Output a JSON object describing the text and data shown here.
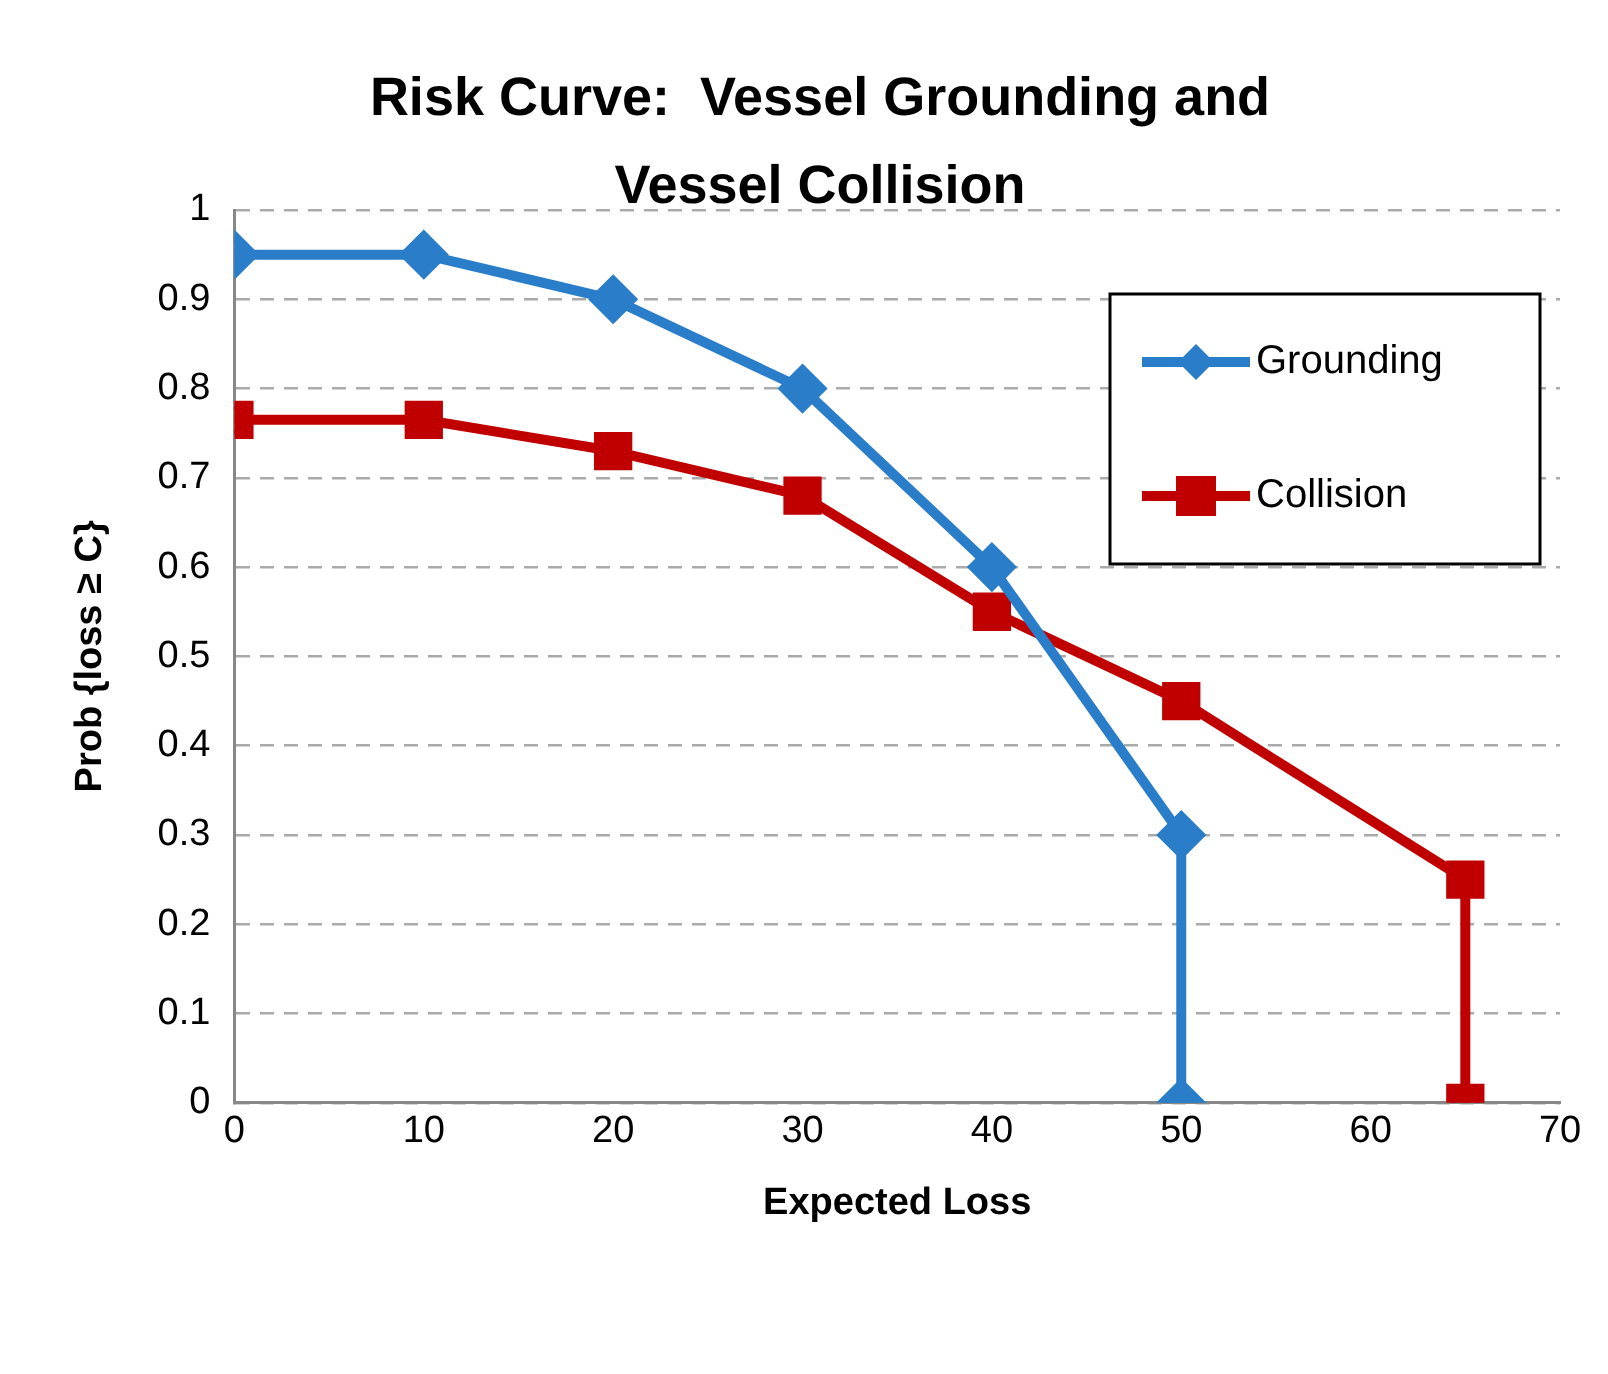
{
  "chart_data": {
    "type": "line",
    "title": "Risk Curve:  Vessel Grounding and Vessel Collision",
    "xlabel": "Expected Loss",
    "ylabel": "Prob {loss ≥ C}",
    "xlim": [
      0,
      70
    ],
    "xticks": [
      0,
      10,
      20,
      30,
      40,
      50,
      60,
      70
    ],
    "ylim": [
      0,
      1
    ],
    "yticks": [
      0,
      0.1,
      0.2,
      0.3,
      0.4,
      0.5,
      0.6,
      0.7,
      0.8,
      0.9,
      1
    ],
    "grid": "y",
    "legend": "top right",
    "line_style": "solid",
    "series": [
      {
        "name": "Grounding",
        "color": "#2a7dc9",
        "marker": "diamond",
        "x": [
          0,
          10,
          20,
          30,
          40,
          50,
          50
        ],
        "values": [
          0.95,
          0.95,
          0.9,
          0.8,
          0.6,
          0.3,
          0
        ]
      },
      {
        "name": "Collision",
        "color": "#c00000",
        "marker": "square",
        "x": [
          0,
          10,
          20,
          30,
          40,
          50,
          65,
          65
        ],
        "values": [
          0.765,
          0.765,
          0.73,
          0.68,
          0.55,
          0.45,
          0.25,
          0
        ]
      }
    ]
  }
}
